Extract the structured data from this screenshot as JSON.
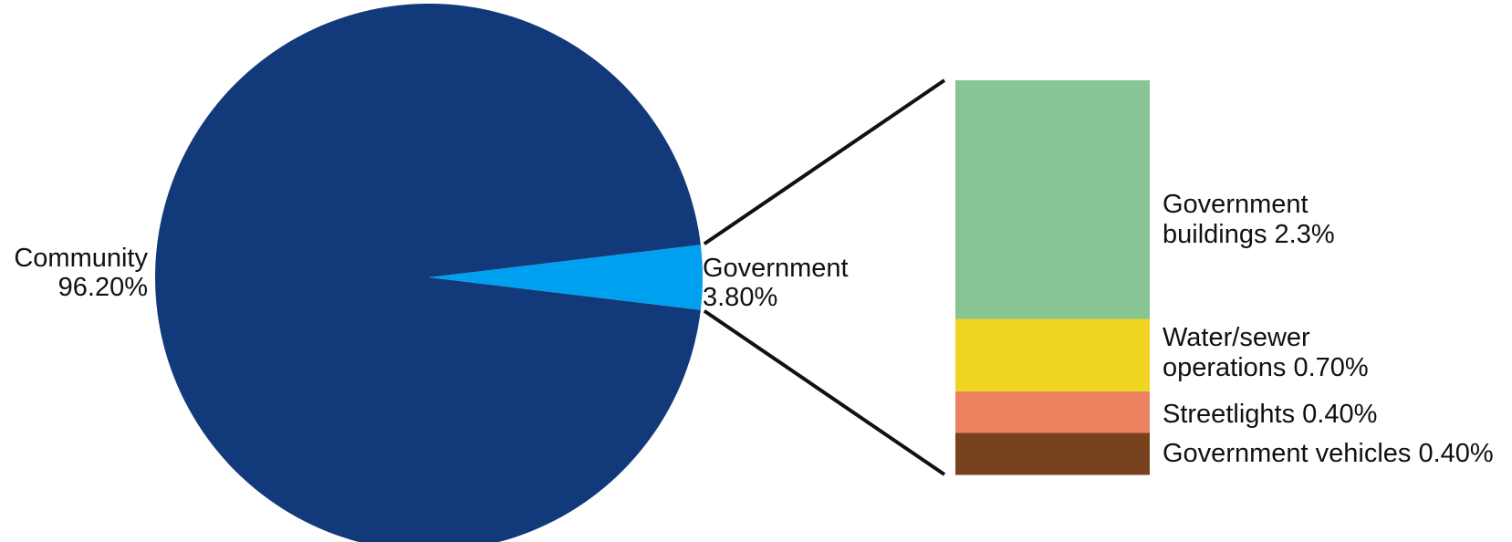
{
  "chart_data": {
    "type": "pie",
    "title": "",
    "pie": {
      "slices": [
        {
          "name": "Community",
          "value_label": "96.20%",
          "value": 96.2,
          "color": "#123a7a"
        },
        {
          "name": "Government",
          "value_label": "3.80%",
          "value": 3.8,
          "color": "#00a0f0"
        }
      ]
    },
    "breakdown": {
      "of": "Government",
      "type": "stacked_bar",
      "segments": [
        {
          "label_lines": [
            "Government",
            "buildings 2.3%"
          ],
          "value": 2.3,
          "color": "#88c594"
        },
        {
          "label_lines": [
            "Water/sewer",
            "operations 0.70%"
          ],
          "value": 0.7,
          "color": "#f0d620"
        },
        {
          "label_lines": [
            "Streetlights 0.40%"
          ],
          "value": 0.4,
          "color": "#ec8160"
        },
        {
          "label_lines": [
            "Government vehicles 0.40%"
          ],
          "value": 0.4,
          "color": "#77421d"
        }
      ]
    }
  }
}
